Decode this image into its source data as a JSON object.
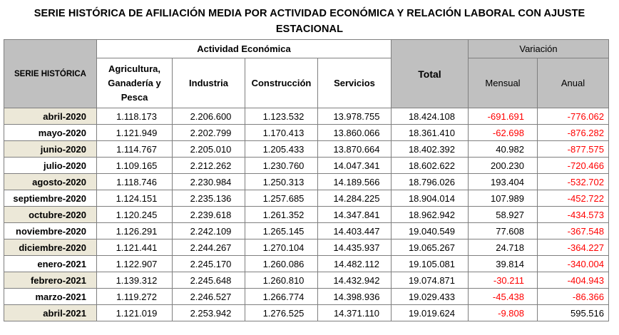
{
  "title_line1": "SERIE HISTÓRICA DE AFILIACIÓN MEDIA POR ACTIVIDAD ECONÓMICA Y RELACIÓN LABORAL CON AJUSTE",
  "title_line2": "ESTACIONAL",
  "headers": {
    "serie": "SERIE HISTÓRICA",
    "actividad": "Actividad Económica",
    "agricultura": "Agricultura, Ganadería y Pesca",
    "industria": "Industria",
    "construccion": "Construcción",
    "servicios": "Servicios",
    "total": "Total",
    "variacion": "Variación",
    "mensual": "Mensual",
    "anual": "Anual"
  },
  "rows": [
    {
      "date": "abril-2020",
      "agr": "1.118.173",
      "ind": "2.206.600",
      "con": "1.123.532",
      "ser": "13.978.755",
      "total": "18.424.108",
      "mensual": "-691.691",
      "anual": "-776.062"
    },
    {
      "date": "mayo-2020",
      "agr": "1.121.949",
      "ind": "2.202.799",
      "con": "1.170.413",
      "ser": "13.860.066",
      "total": "18.361.410",
      "mensual": "-62.698",
      "anual": "-876.282"
    },
    {
      "date": "junio-2020",
      "agr": "1.114.767",
      "ind": "2.205.010",
      "con": "1.205.433",
      "ser": "13.870.664",
      "total": "18.402.392",
      "mensual": "40.982",
      "anual": "-877.575"
    },
    {
      "date": "julio-2020",
      "agr": "1.109.165",
      "ind": "2.212.262",
      "con": "1.230.760",
      "ser": "14.047.341",
      "total": "18.602.622",
      "mensual": "200.230",
      "anual": "-720.466"
    },
    {
      "date": "agosto-2020",
      "agr": "1.118.746",
      "ind": "2.230.984",
      "con": "1.250.313",
      "ser": "14.189.566",
      "total": "18.796.026",
      "mensual": "193.404",
      "anual": "-532.702"
    },
    {
      "date": "septiembre-2020",
      "agr": "1.124.151",
      "ind": "2.235.136",
      "con": "1.257.685",
      "ser": "14.284.225",
      "total": "18.904.014",
      "mensual": "107.989",
      "anual": "-452.722"
    },
    {
      "date": "octubre-2020",
      "agr": "1.120.245",
      "ind": "2.239.618",
      "con": "1.261.352",
      "ser": "14.347.841",
      "total": "18.962.942",
      "mensual": "58.927",
      "anual": "-434.573"
    },
    {
      "date": "noviembre-2020",
      "agr": "1.126.291",
      "ind": "2.242.109",
      "con": "1.265.145",
      "ser": "14.403.447",
      "total": "19.040.549",
      "mensual": "77.608",
      "anual": "-367.548"
    },
    {
      "date": "diciembre-2020",
      "agr": "1.121.441",
      "ind": "2.244.267",
      "con": "1.270.104",
      "ser": "14.435.937",
      "total": "19.065.267",
      "mensual": "24.718",
      "anual": "-364.227"
    },
    {
      "date": "enero-2021",
      "agr": "1.122.907",
      "ind": "2.245.170",
      "con": "1.260.086",
      "ser": "14.482.112",
      "total": "19.105.081",
      "mensual": "39.814",
      "anual": "-340.004"
    },
    {
      "date": "febrero-2021",
      "agr": "1.139.312",
      "ind": "2.245.648",
      "con": "1.260.810",
      "ser": "14.432.942",
      "total": "19.074.871",
      "mensual": "-30.211",
      "anual": "-404.943"
    },
    {
      "date": "marzo-2021",
      "agr": "1.119.272",
      "ind": "2.246.527",
      "con": "1.266.774",
      "ser": "14.398.936",
      "total": "19.029.433",
      "mensual": "-45.438",
      "anual": "-86.366"
    },
    {
      "date": "abril-2021",
      "agr": "1.121.019",
      "ind": "2.253.942",
      "con": "1.276.525",
      "ser": "14.371.110",
      "total": "19.019.624",
      "mensual": "-9.808",
      "anual": "595.516"
    }
  ],
  "colors": {
    "header_bg": "#c0c0c0",
    "date_band": "#ece8d8",
    "negative": "#ff0000",
    "border": "#7f7f7f"
  }
}
